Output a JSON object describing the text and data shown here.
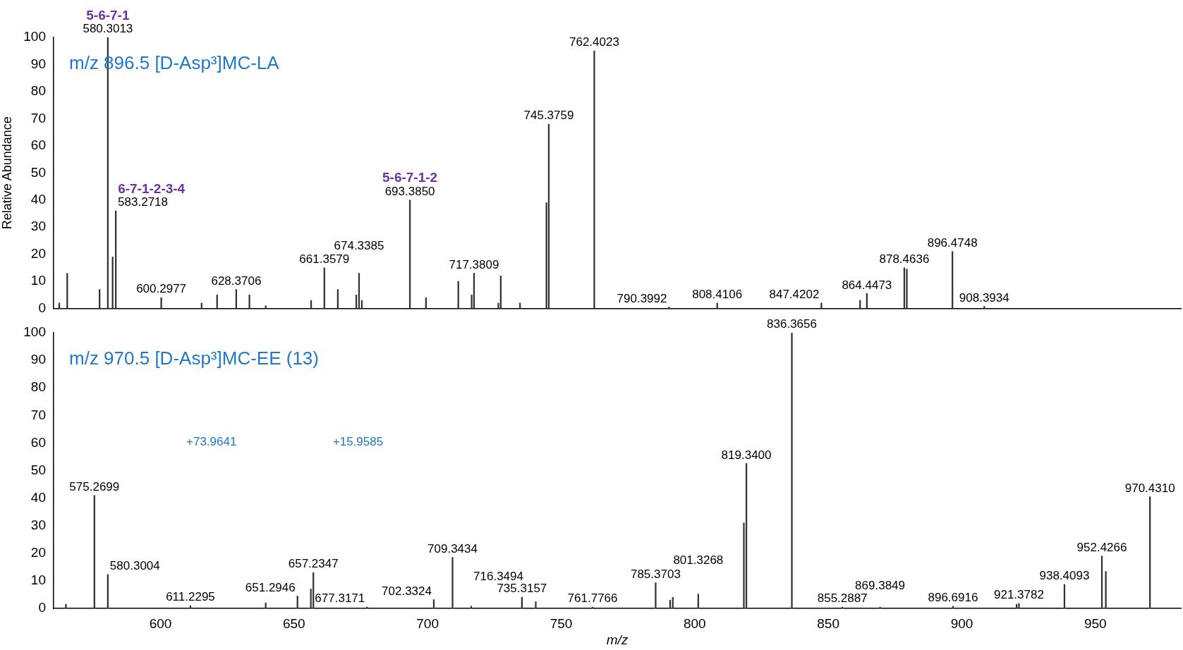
{
  "chart_data": [
    {
      "type": "bar",
      "title": "m/z 896.5 [D-Asp³]MC-LA",
      "ylabel": "Relative Abundance",
      "xlim": [
        560,
        982
      ],
      "ylim": [
        0,
        100
      ],
      "yticks": [
        0,
        10,
        20,
        30,
        40,
        50,
        60,
        70,
        80,
        90,
        100
      ],
      "tick_labels": "y",
      "color": "#333333",
      "x": [
        562.1,
        565.1,
        577.2,
        580.3013,
        582.1,
        583.2718,
        600.2977,
        615.4,
        621.2,
        628.3706,
        633.3,
        639.4,
        656.4,
        661.3579,
        666.4,
        673.3,
        674.3385,
        675.4,
        693.385,
        699.4,
        711.5,
        716.5,
        717.3809,
        726.5,
        727.4,
        734.6,
        744.5,
        745.3759,
        762.4023,
        790.3992,
        808.4106,
        847.4202,
        861.9,
        864.4473,
        878.4636,
        879.4,
        896.4748,
        908.3934
      ],
      "values": [
        2,
        13,
        7,
        100,
        19,
        36,
        4,
        2,
        5,
        7,
        5,
        1,
        3,
        15,
        7,
        5,
        13,
        3,
        40,
        4,
        10,
        5,
        13,
        2,
        12,
        2,
        39,
        68,
        95,
        0.5,
        2,
        2,
        3,
        5.5,
        15,
        14.5,
        21,
        0.8
      ],
      "annotations": [
        {
          "text": "580.3013",
          "x": 580.3013,
          "y": 100
        },
        {
          "text": "583.2718",
          "x": 583.2718,
          "y": 36
        },
        {
          "text": "600.2977",
          "x": 600.2977,
          "y": 4
        },
        {
          "text": "628.3706",
          "x": 628.3706,
          "y": 7
        },
        {
          "text": "661.3579",
          "x": 661.3579,
          "y": 15
        },
        {
          "text": "674.3385",
          "x": 674.3385,
          "y": 13
        },
        {
          "text": "693.3850",
          "x": 693.385,
          "y": 40
        },
        {
          "text": "717.3809",
          "x": 717.3809,
          "y": 13
        },
        {
          "text": "745.3759",
          "x": 745.3759,
          "y": 68
        },
        {
          "text": "762.4023",
          "x": 762.4023,
          "y": 95
        },
        {
          "text": "790.3992",
          "x": 790.3992,
          "y": 0.5
        },
        {
          "text": "808.4106",
          "x": 808.4106,
          "y": 2
        },
        {
          "text": "847.4202",
          "x": 847.4202,
          "y": 2
        },
        {
          "text": "864.4473",
          "x": 864.4473,
          "y": 5.5
        },
        {
          "text": "878.4636",
          "x": 878.4636,
          "y": 15
        },
        {
          "text": "896.4748",
          "x": 896.4748,
          "y": 21
        },
        {
          "text": "908.3934",
          "x": 908.3934,
          "y": 0.8
        },
        {
          "text": "5-6-7-1",
          "x": 580.3013,
          "y": 100
        },
        {
          "text": "6-7-1-2-3-4",
          "x": 583.2718,
          "y": 36
        },
        {
          "text": "5-6-7-1-2",
          "x": 693.385,
          "y": 40
        }
      ]
    },
    {
      "type": "bar",
      "title": "m/z 970.5 [D-Asp³]MC-EE (13)",
      "xlabel": "m/z",
      "xlim": [
        560,
        982
      ],
      "xticks": [
        600,
        650,
        700,
        750,
        800,
        850,
        900,
        950
      ],
      "ylim": [
        0,
        100
      ],
      "yticks": [
        0,
        10,
        20,
        30,
        40,
        50,
        60,
        70,
        80,
        90,
        100
      ],
      "color": "#333333",
      "x": [
        564.6,
        575.2699,
        580.3004,
        611.2295,
        639.4,
        651.2946,
        656.3,
        657.2347,
        677.3171,
        702.3324,
        709.3434,
        716.3494,
        735.3157,
        740.5,
        761.7766,
        785.3703,
        790.8,
        791.8,
        801.3268,
        818.4,
        819.34,
        836.3656,
        855.2887,
        869.3849,
        896.6916,
        920.5,
        921.3782,
        938.4093,
        952.4266,
        953.9,
        970.431
      ],
      "values": [
        1.5,
        41,
        12.3,
        1,
        2,
        4.5,
        7,
        13,
        0.5,
        3.2,
        18.5,
        0.8,
        4.1,
        2.4,
        0.5,
        9.3,
        3,
        4,
        5.2,
        31,
        52.6,
        100,
        0.5,
        0.5,
        0.8,
        1.5,
        1.8,
        8.7,
        19,
        13.4,
        40.5
      ],
      "annotations": [
        {
          "text": "575.2699",
          "x": 575.2699,
          "y": 41
        },
        {
          "text": "580.3004",
          "x": 580.3004,
          "y": 12.3
        },
        {
          "text": "611.2295",
          "x": 611.2295,
          "y": 1
        },
        {
          "text": "651.2946",
          "x": 651.2946,
          "y": 4.5
        },
        {
          "text": "657.2347",
          "x": 657.2347,
          "y": 13
        },
        {
          "text": "677.3171",
          "x": 677.3171,
          "y": 0.5
        },
        {
          "text": "702.3324",
          "x": 702.3324,
          "y": 3.2
        },
        {
          "text": "709.3434",
          "x": 709.3434,
          "y": 18.5
        },
        {
          "text": "716.3494",
          "x": 716.3494,
          "y": 0.8
        },
        {
          "text": "735.3157",
          "x": 735.3157,
          "y": 4.1
        },
        {
          "text": "761.7766",
          "x": 761.7766,
          "y": 0.5
        },
        {
          "text": "785.3703",
          "x": 785.3703,
          "y": 9.3
        },
        {
          "text": "801.3268",
          "x": 801.3268,
          "y": 5.2
        },
        {
          "text": "819.3400",
          "x": 819.34,
          "y": 52.6
        },
        {
          "text": "836.3656",
          "x": 836.3656,
          "y": 100
        },
        {
          "text": "855.2887",
          "x": 855.2887,
          "y": 0.5
        },
        {
          "text": "869.3849",
          "x": 869.3849,
          "y": 0.5
        },
        {
          "text": "896.6916",
          "x": 896.6916,
          "y": 0.8
        },
        {
          "text": "921.3782",
          "x": 921.3782,
          "y": 1.8
        },
        {
          "text": "938.4093",
          "x": 938.4093,
          "y": 8.7
        },
        {
          "text": "952.4266",
          "x": 952.4266,
          "y": 19
        },
        {
          "text": "970.4310",
          "x": 970.431,
          "y": 40.5
        },
        "+73.9641",
        "+15.9585"
      ]
    }
  ]
}
